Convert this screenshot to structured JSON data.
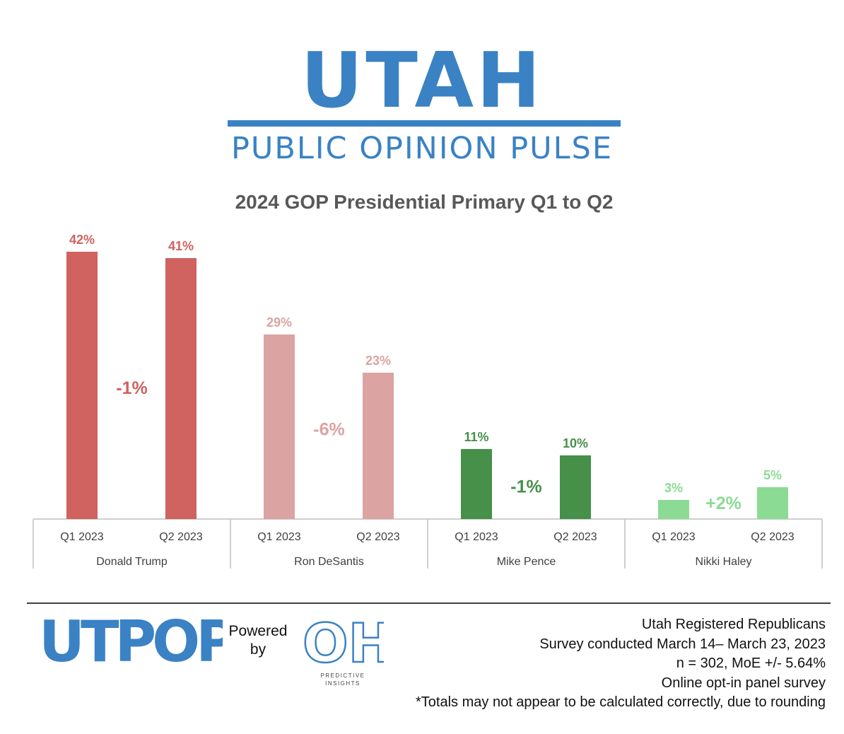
{
  "brand": {
    "name": "UTAH",
    "tagline": "PUBLIC OPINION PULSE",
    "accent_color": "#3a82c4"
  },
  "footer": {
    "utpop_logo_text": "UTPOP",
    "powered_line1": "Powered",
    "powered_line2": "by",
    "partner_logo_text": "OH",
    "partner_caption_line1": "PREDICTIVE",
    "partner_caption_line2": "INSIGHTS",
    "notes": [
      "Utah Registered Republicans",
      "Survey conducted March 14– March 23, 2023",
      "n = 302, MoE +/- 5.64%",
      "Online opt-in panel survey ",
      "*Totals may not appear to be calculated correctly, due to rounding"
    ]
  },
  "chart_data": {
    "type": "bar",
    "title": "2024 GOP Presidential Primary Q1 to Q2",
    "xlabel": "",
    "ylabel": "",
    "ylim": [
      0,
      42
    ],
    "grid": false,
    "legend": "none",
    "groups": [
      {
        "name": "Donald Trump",
        "color": "#d0625f",
        "bars": [
          {
            "category": "Q1 2023",
            "value": 42,
            "label": "42%"
          },
          {
            "category": "Q2 2023",
            "value": 41,
            "label": "41%"
          }
        ],
        "change": "-1%"
      },
      {
        "name": "Ron DeSantis",
        "color": "#dba3a2",
        "bars": [
          {
            "category": "Q1 2023",
            "value": 29,
            "label": "29%"
          },
          {
            "category": "Q2 2023",
            "value": 23,
            "label": "23%"
          }
        ],
        "change": "-6%"
      },
      {
        "name": "Mike Pence",
        "color": "#46904a",
        "bars": [
          {
            "category": "Q1 2023",
            "value": 11,
            "label": "11%"
          },
          {
            "category": "Q2 2023",
            "value": 10,
            "label": "10%"
          }
        ],
        "change": "-1%"
      },
      {
        "name": "Nikki Haley",
        "color": "#8cdb94",
        "bars": [
          {
            "category": "Q1 2023",
            "value": 3,
            "label": "3%"
          },
          {
            "category": "Q2 2023",
            "value": 5,
            "label": "5%"
          }
        ],
        "change": "+2%"
      }
    ]
  }
}
